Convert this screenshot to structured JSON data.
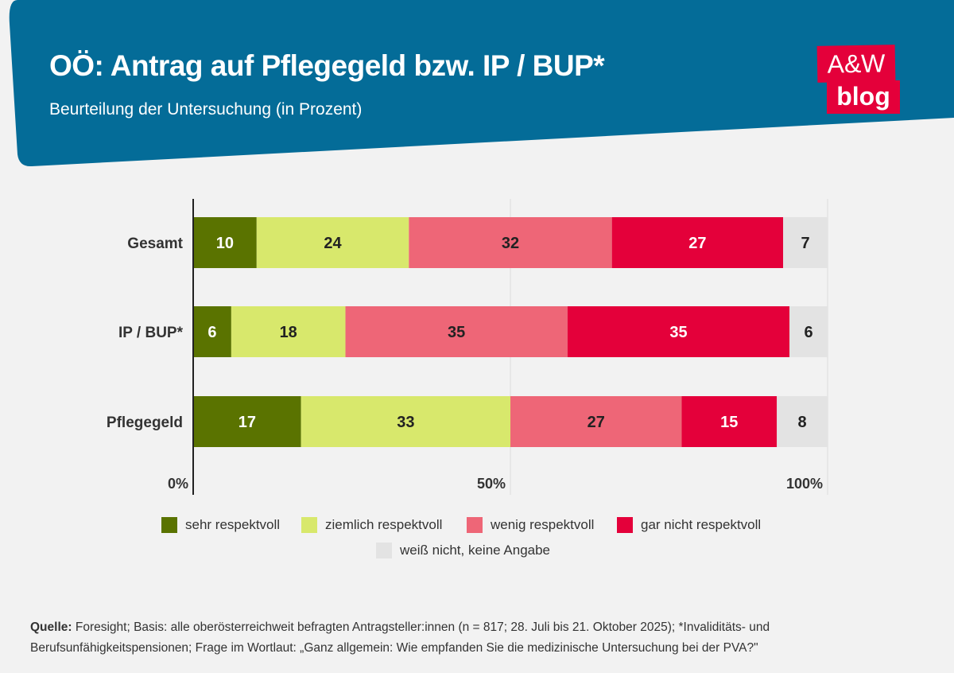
{
  "header": {
    "title": "OÖ: Antrag auf Pflegegeld bzw. IP / BUP*",
    "subtitle": "Beurteilung der Untersuchung (in Prozent)",
    "logo_text_top": "A&W",
    "logo_text_bottom": "blog",
    "banner_color": "#046c98",
    "logo_color": "#e4003a"
  },
  "chart_data": {
    "type": "bar",
    "orientation": "horizontal",
    "stacked": true,
    "categories": [
      "Gesamt",
      "IP / BUP*",
      "Pflegegeld"
    ],
    "series": [
      {
        "name": "sehr respektvoll",
        "color": "#5a7300",
        "values": [
          10,
          6,
          17
        ]
      },
      {
        "name": "ziemlich respektvoll",
        "color": "#d8e86c",
        "values": [
          24,
          18,
          33
        ]
      },
      {
        "name": "wenig respektvoll",
        "color": "#ee6677",
        "values": [
          32,
          35,
          27
        ]
      },
      {
        "name": "gar nicht respektvoll",
        "color": "#e4003a",
        "values": [
          27,
          35,
          15
        ]
      },
      {
        "name": "weiß nicht, keine Angabe",
        "color": "#e3e3e3",
        "values": [
          7,
          6,
          8
        ]
      }
    ],
    "xticks": [
      "0%",
      "50%",
      "100%"
    ],
    "xlim": [
      0,
      100
    ],
    "legend": "bottom"
  },
  "footer": {
    "label": "Quelle:",
    "text": " Foresight; Basis: alle oberösterreichweit befragten Antragsteller:innen (n = 817; 28. Juli bis 21. Oktober 2025); *Invaliditäts- und Berufsunfähigkeitspensionen; Frage im Wortlaut: „Ganz allgemein: Wie empfanden Sie die medizinische Untersuchung bei der PVA?\""
  }
}
